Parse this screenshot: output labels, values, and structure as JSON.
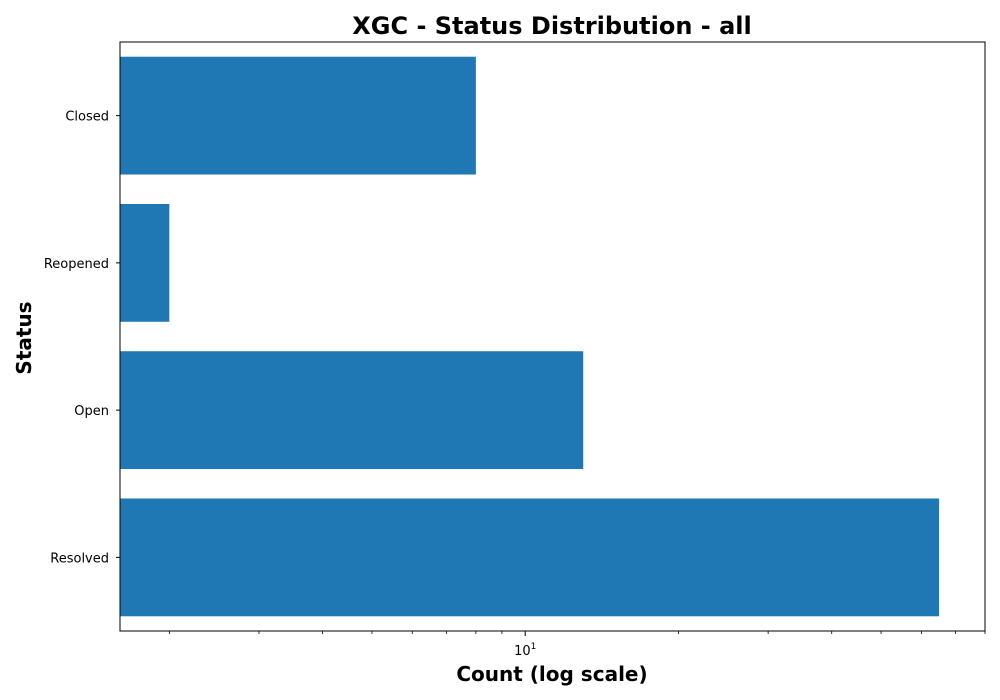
{
  "chart_data": {
    "type": "bar",
    "orientation": "horizontal",
    "title": "XGC - Status Distribution - all",
    "xlabel": "Count (log scale)",
    "ylabel": "Status",
    "x_scale": "log",
    "xlim": [
      1.6,
      80
    ],
    "x_ticks": [
      {
        "value": 10,
        "mantissa": "10",
        "exponent": "1"
      }
    ],
    "categories": [
      "Resolved",
      "Open",
      "Reopened",
      "Closed"
    ],
    "values": [
      65,
      13,
      2,
      8
    ],
    "bar_color": "#1f77b4",
    "grid": false,
    "legend": "none"
  }
}
